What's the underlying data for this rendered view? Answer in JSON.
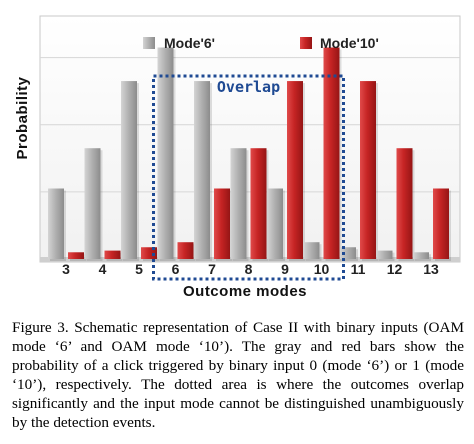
{
  "chart_data": {
    "type": "bar",
    "categories": [
      "3",
      "4",
      "5",
      "6",
      "7",
      "8",
      "9",
      "10",
      "11",
      "12",
      "13"
    ],
    "series": [
      {
        "name": "Mode'6'",
        "color": "#a8a8a8",
        "values": [
          0.21,
          0.33,
          0.53,
          0.63,
          0.53,
          0.33,
          0.21,
          0.05,
          0.035,
          0.025,
          0.02
        ]
      },
      {
        "name": "Mode'10'",
        "color": "#c32020",
        "values": [
          0.02,
          0.025,
          0.035,
          0.05,
          0.21,
          0.33,
          0.53,
          0.63,
          0.53,
          0.33,
          0.21
        ]
      }
    ],
    "xlabel": "Outcome modes",
    "ylabel": "Probability",
    "ylim": [
      0,
      0.7
    ],
    "grid": true,
    "legend": "top",
    "annotation": {
      "label": "Overlap",
      "from_category": "6",
      "to_category": "10"
    }
  },
  "caption": "Figure 3.  Schematic representation of Case II with binary inputs (OAM mode ‘6’ and OAM mode ‘10’). The gray and red bars show the probability of a click triggered by binary input 0 (mode ‘6’) or 1 (mode ‘10’), respectively. The dotted area is where the outcomes overlap significantly and the input mode cannot be distinguished unambiguously by the detection events."
}
